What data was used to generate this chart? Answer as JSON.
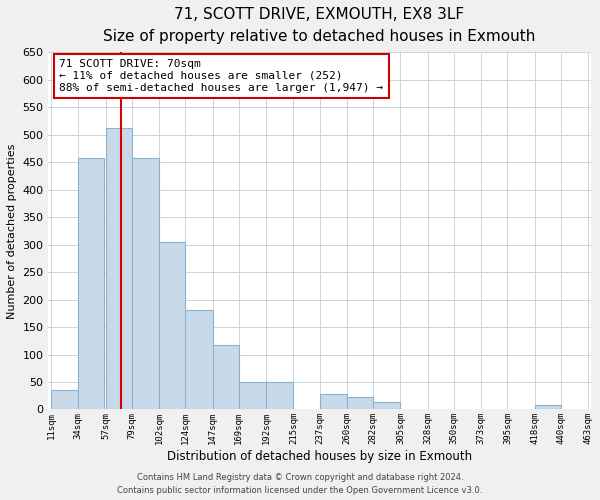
{
  "title": "71, SCOTT DRIVE, EXMOUTH, EX8 3LF",
  "subtitle": "Size of property relative to detached houses in Exmouth",
  "xlabel": "Distribution of detached houses by size in Exmouth",
  "ylabel": "Number of detached properties",
  "bar_left_edges": [
    11,
    34,
    57,
    79,
    102,
    124,
    147,
    169,
    192,
    215,
    237,
    260,
    282,
    305,
    328,
    350,
    373,
    395,
    418,
    440
  ],
  "bar_heights": [
    35,
    458,
    512,
    457,
    305,
    181,
    117,
    50,
    50,
    0,
    28,
    22,
    13,
    0,
    0,
    0,
    0,
    0,
    8,
    0
  ],
  "bar_widths": [
    23,
    22,
    22,
    23,
    22,
    23,
    22,
    23,
    23,
    22,
    23,
    22,
    23,
    23,
    22,
    23,
    22,
    23,
    22,
    23
  ],
  "tick_labels": [
    "11sqm",
    "34sqm",
    "57sqm",
    "79sqm",
    "102sqm",
    "124sqm",
    "147sqm",
    "169sqm",
    "192sqm",
    "215sqm",
    "237sqm",
    "260sqm",
    "282sqm",
    "305sqm",
    "328sqm",
    "350sqm",
    "373sqm",
    "395sqm",
    "418sqm",
    "440sqm",
    "463sqm"
  ],
  "tick_positions": [
    11,
    34,
    57,
    79,
    102,
    124,
    147,
    169,
    192,
    215,
    237,
    260,
    282,
    305,
    328,
    350,
    373,
    395,
    418,
    440,
    463
  ],
  "xlim_left": 9,
  "xlim_right": 465,
  "ylim": [
    0,
    650
  ],
  "yticks": [
    0,
    50,
    100,
    150,
    200,
    250,
    300,
    350,
    400,
    450,
    500,
    550,
    600,
    650
  ],
  "bar_color": "#c8daea",
  "bar_edge_color": "#8ab4cc",
  "vline_x": 70,
  "vline_color": "#dd0000",
  "ann_line1": "71 SCOTT DRIVE: 70sqm",
  "ann_line2": "← 11% of detached houses are smaller (252)",
  "ann_line3": "88% of semi-detached houses are larger (1,947) →",
  "footer_text1": "Contains HM Land Registry data © Crown copyright and database right 2024.",
  "footer_text2": "Contains public sector information licensed under the Open Government Licence v3.0.",
  "bg_color": "#f0f0f0",
  "plot_bg_color": "#ffffff",
  "grid_color": "#c8d4e0"
}
